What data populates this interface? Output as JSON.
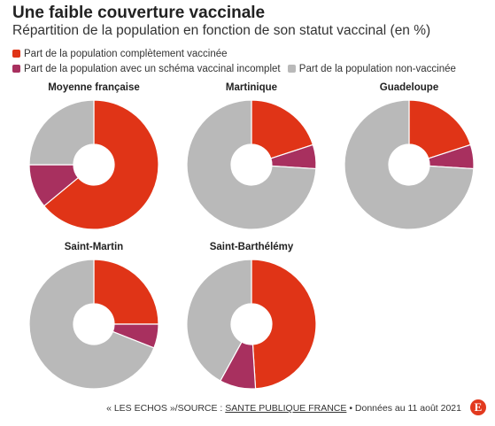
{
  "header": {
    "title": "Une faible couverture vaccinale",
    "subtitle": "Répartition de la population en fonction de son statut vaccinal (en %)"
  },
  "legend": [
    {
      "label": "Part de la population complètement vaccinée",
      "color": "#e03417"
    },
    {
      "label": "Part de la population avec un schéma vaccinal incomplet",
      "color": "#a8305f"
    },
    {
      "label": "Part de la population non-vaccinée",
      "color": "#b9b9b9"
    }
  ],
  "chart_data": [
    {
      "type": "pie",
      "title": "Moyenne française",
      "series": [
        {
          "name": "Part de la population complètement vaccinée",
          "value": 64
        },
        {
          "name": "Part de la population avec un schéma vaccinal incomplet",
          "value": 11
        },
        {
          "name": "Part de la population non-vaccinée",
          "value": 25
        }
      ]
    },
    {
      "type": "pie",
      "title": "Martinique",
      "series": [
        {
          "name": "Part de la population complètement vaccinée",
          "value": 20
        },
        {
          "name": "Part de la population avec un schéma vaccinal incomplet",
          "value": 6
        },
        {
          "name": "Part de la population non-vaccinée",
          "value": 74
        }
      ]
    },
    {
      "type": "pie",
      "title": "Guadeloupe",
      "series": [
        {
          "name": "Part de la population complètement vaccinée",
          "value": 20
        },
        {
          "name": "Part de la population avec un schéma vaccinal incomplet",
          "value": 6
        },
        {
          "name": "Part de la population non-vaccinée",
          "value": 74
        }
      ]
    },
    {
      "type": "pie",
      "title": "Saint-Martin",
      "series": [
        {
          "name": "Part de la population complètement vaccinée",
          "value": 25
        },
        {
          "name": "Part de la population avec un schéma vaccinal incomplet",
          "value": 6
        },
        {
          "name": "Part de la population non-vaccinée",
          "value": 69
        }
      ]
    },
    {
      "type": "pie",
      "title": "Saint-Barthélémy",
      "series": [
        {
          "name": "Part de la population complètement vaccinée",
          "value": 49
        },
        {
          "name": "Part de la population avec un schéma vaccinal incomplet",
          "value": 9
        },
        {
          "name": "Part de la population non-vaccinée",
          "value": 42
        }
      ]
    }
  ],
  "footer": {
    "prefix": "« LES ECHOS »/SOURCE : ",
    "org": "SANTE PUBLIQUE FRANCE",
    "suffix": " • Données au 11 août 2021",
    "logo": "E"
  }
}
